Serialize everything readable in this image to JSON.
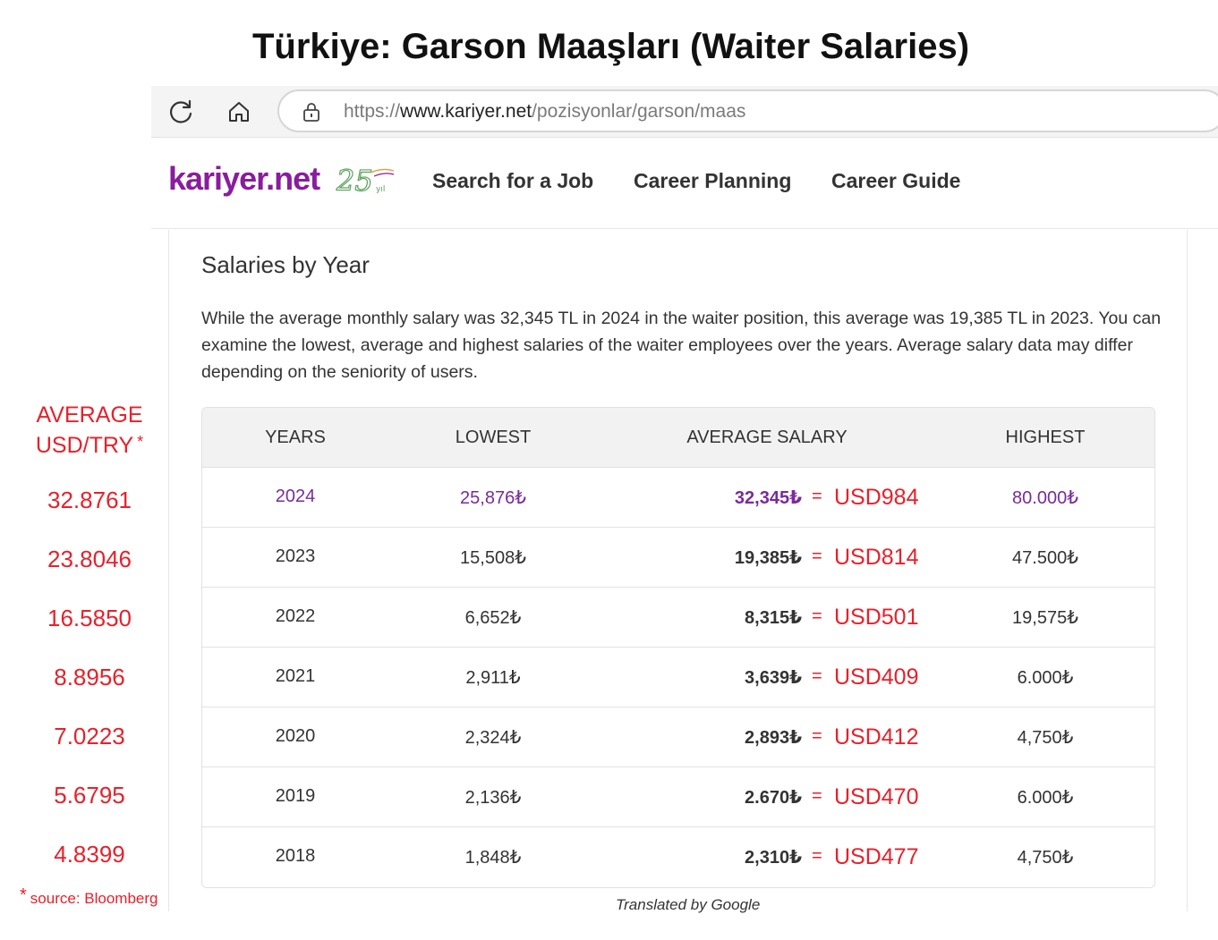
{
  "title": "Türkiye: Garson Maaşları (Waiter Salaries)",
  "browser": {
    "url_prefix": "https://",
    "url_domain": "www.kariyer.net",
    "url_path": "/pozisyonlar/garson/maas"
  },
  "site": {
    "logo_text": "kariyer.net",
    "logo_badge": "25 yıl",
    "nav": [
      "Search for a Job",
      "Career Planning",
      "Career Guide"
    ]
  },
  "section": {
    "title": "Salaries by Year",
    "description": "While the average monthly salary was 32,345 TL in 2024 in the waiter position, this average was 19,385 TL in 2023. You can examine the lowest, average and highest salaries of the waiter employees over the years. Average salary data may differ depending on the seniority of users."
  },
  "table": {
    "headers": [
      "YEARS",
      "LOWEST",
      "AVERAGE SALARY",
      "HIGHEST"
    ],
    "equals": "=",
    "rows": [
      {
        "year": "2024",
        "lowest": "25,876₺",
        "average": "32,345₺",
        "usd": "USD984",
        "highest": "80.000₺"
      },
      {
        "year": "2023",
        "lowest": "15,508₺",
        "average": "19,385₺",
        "usd": "USD814",
        "highest": "47.500₺"
      },
      {
        "year": "2022",
        "lowest": "6,652₺",
        "average": "8,315₺",
        "usd": "USD501",
        "highest": "19,575₺"
      },
      {
        "year": "2021",
        "lowest": "2,911₺",
        "average": "3,639₺",
        "usd": "USD409",
        "highest": "6.000₺"
      },
      {
        "year": "2020",
        "lowest": "2,324₺",
        "average": "2,893₺",
        "usd": "USD412",
        "highest": "4,750₺"
      },
      {
        "year": "2019",
        "lowest": "2,136₺",
        "average": "2.670₺",
        "usd": "USD470",
        "highest": "6.000₺"
      },
      {
        "year": "2018",
        "lowest": "1,848₺",
        "average": "2,310₺",
        "usd": "USD477",
        "highest": "4,750₺"
      }
    ]
  },
  "rates": {
    "title_line1": "AVERAGE",
    "title_line2": "USD/TRY",
    "title_star": "*",
    "values": [
      "32.8761",
      "23.8046",
      "16.5850",
      "8.8956",
      "7.0223",
      "5.6795",
      "4.8399"
    ],
    "source_star": "*",
    "source": "source: Bloomberg"
  },
  "credit": "Translated by Google",
  "colors": {
    "brand": "#8a1c9e",
    "highlight_row": "#7b2a9b",
    "annotation_red": "#e8202a"
  }
}
